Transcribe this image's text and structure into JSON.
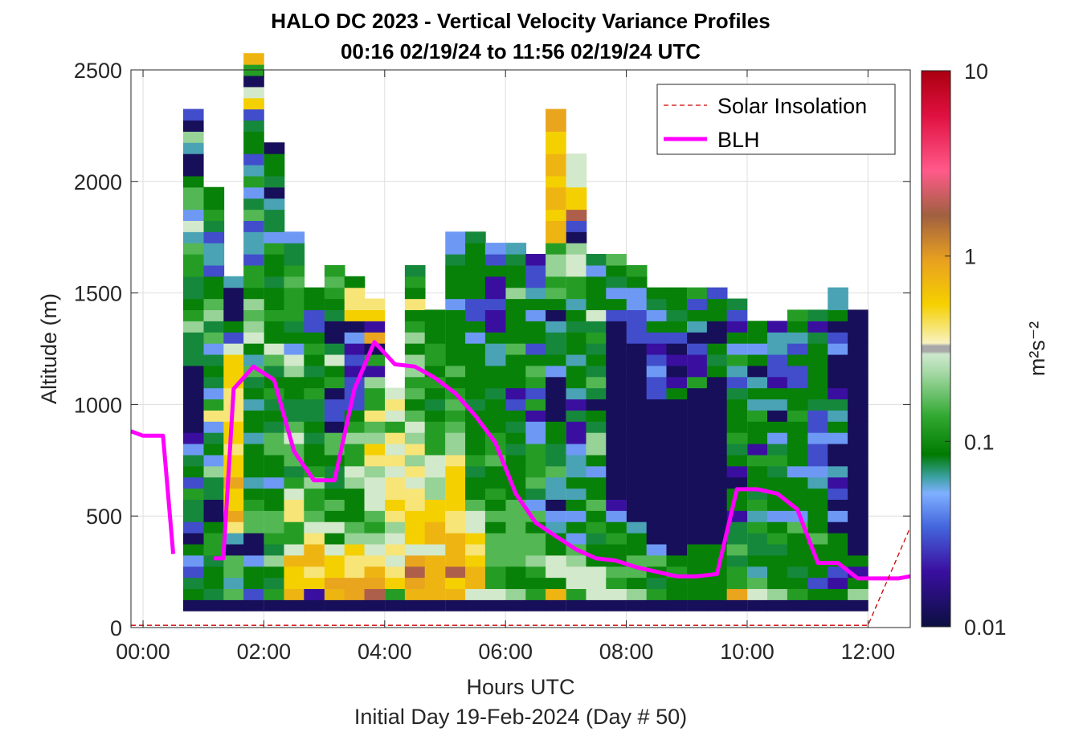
{
  "title_line1": "HALO DC 2023 - Vertical Velocity Variance Profiles",
  "title_line2": "00:16 02/19/24 to 11:56 02/19/24  UTC",
  "xlabel": "Hours UTC",
  "subtitle": "Initial Day 19-Feb-2024 (Day # 50)",
  "ylabel": "Altitude (m)",
  "colorbar_label": "m²s⁻²",
  "legend": [
    {
      "label": "Solar Insolation",
      "color": "#cc0000",
      "style": "dashed"
    },
    {
      "label": "BLH",
      "color": "#ff00ff",
      "style": "solid"
    }
  ],
  "chart_data": {
    "type": "heatmap",
    "x_unit": "hours UTC",
    "y_unit": "m",
    "xlim": [
      -0.2,
      12.7
    ],
    "ylim": [
      0,
      2500
    ],
    "xticks": [
      {
        "v": 0,
        "label": "00:00"
      },
      {
        "v": 2,
        "label": "02:00"
      },
      {
        "v": 4,
        "label": "04:00"
      },
      {
        "v": 6,
        "label": "06:00"
      },
      {
        "v": 8,
        "label": "08:00"
      },
      {
        "v": 10,
        "label": "10:00"
      },
      {
        "v": 12,
        "label": "12:00"
      }
    ],
    "yticks": [
      0,
      500,
      1000,
      1500,
      2000,
      2500
    ],
    "grid": true,
    "legend_position": "top-right",
    "colorbar": {
      "scale": "log",
      "min": 0.01,
      "max": 10,
      "ticks": [
        {
          "v": 0.01,
          "label": "0.01"
        },
        {
          "v": 0.1,
          "label": "0.1"
        },
        {
          "v": 1,
          "label": "1"
        },
        {
          "v": 10,
          "label": "10"
        }
      ]
    },
    "cell_width_h": 0.333,
    "cell_height_m": 50,
    "altitude_start_m": 100,
    "profile_times": [
      0.83,
      1.17,
      1.5,
      1.83,
      2.17,
      2.5,
      2.83,
      3.17,
      3.5,
      3.83,
      4.17,
      4.5,
      4.83,
      5.17,
      5.5,
      5.83,
      6.17,
      6.5,
      6.83,
      7.17,
      7.5,
      7.83,
      8.17,
      8.5,
      8.83,
      9.17,
      9.5,
      9.83,
      10.17,
      10.5,
      10.83,
      11.17,
      11.5,
      11.83
    ],
    "variance_code_key": "a=0.012 b=0.02 c=0.03 d=0.045 e=0.06 f=0.075 g=0.09 h=0.12 i=0.16 j=0.22 k=0.3 m=0.4 n=0.55 p=0.75 q=0.9 r=1.8",
    "variance_profiles_m2s2_coded": [
      "agfcdgacffhcgfdbaaaaaafffjhgffhhiekdiigaaejac",
      "afggfhhgaaffjdgfdmhdfgfdifjiggceecfhgg",
      "aieiiaemqnnqnnmnnmmmnnnkcgaaae",
      "acggdaaiihgegggeggegfiegkjijghhceecifdhecggfcnkahp",
      "ahfgjfhiiggdggiifgfhgfikgghggfgghdffeafgga",
      "apnnpkhhmmkhfiikiffggjkdgfhhhihffd",
      "abnmppmkihhjhggfgffhgfghgccgg",
      "apqnnkgkgigffgiiaccahgkfaafghih",
      "aqqmmnjigggjkhhjhgcccbcbdanmmg",
      "arqpmkjhikkkjmnjimhhjbhaqbnm",
      "ahnmkmkjmnmmkmkmhkmk",
      "apqrqknnnmmkmjmjkigihjjgjhgmghf",
      "appppkppnnjjkkhhhgfghghhggg",
      "apnrpppmmnnnnmjjihihgigggggdgggfdd",
      "akppnmnkkiggfhggggfgggggdgccgggggf",
      "akhhiiigighggihhgggfggeegbbcbbgcd",
      "ajggiiiiiiggggfgfgcbgggiggggjggfe",
      "ahghjiigidfihhhddbhchigcggdgeccb",
      "apgkkggedaeeiffggaaaadgffeagihjjhppnppnppnnqq",
      "ahkkjidgdgegeedbbfbeggeggfgehhkkjacrnnkkk",
      "akkkggfhgiggdgjjfgafifgfhfkgggdf",
      "akhigghgdbaaaaaaaaaaaaaaaacgdfgi",
      "ajgiiggeaaaaaaaaaaaaaaaacccddgh",
      "ahfgidaaaaaaaaaaaaaccdcbcgdfg",
      "agghgaaaaaaaaaaaaaagbabacgfgg",
      "agggggaaaaaaaaaaaaaahbbcaegch",
      "agggggaaaaaaaaaaaaaaagfgaaggc",
      "aqhhfiffbggabgfhgggfcehdgbcf",
      "akiegffhehfgghbgghegeagdgg",
      "ajgggfhgdgggfhfdgaegbcceeb",
      "ahgfgggidgggdgggghggccgcegh",
      "agcgggiggggedccdccfgggggfbf",
      "agbcgggadacbeaadgefbaaadcagee",
      "ajgbgaaaaaaaaaaaaaaaaaaaaaa"
    ],
    "series": [
      {
        "name": "BLH",
        "x": [
          -0.2,
          0.0,
          0.17,
          0.33,
          0.5,
          0.67,
          1.17,
          1.33,
          1.5,
          1.83,
          2.17,
          2.5,
          2.83,
          3.17,
          3.5,
          3.83,
          4.17,
          4.5,
          4.83,
          5.17,
          5.5,
          5.83,
          6.17,
          6.5,
          6.83,
          7.17,
          7.5,
          7.83,
          8.17,
          8.5,
          8.83,
          9.17,
          9.5,
          9.83,
          10.17,
          10.5,
          10.83,
          11.17,
          11.5,
          11.83,
          12.17,
          12.5,
          12.7
        ],
        "y": [
          880,
          860,
          860,
          860,
          330,
          null,
          310,
          310,
          1070,
          1170,
          1110,
          790,
          660,
          660,
          1070,
          1280,
          1180,
          1170,
          1120,
          1050,
          950,
          830,
          600,
          470,
          410,
          350,
          310,
          300,
          270,
          250,
          230,
          230,
          240,
          620,
          620,
          600,
          530,
          290,
          290,
          220,
          220,
          220,
          230
        ]
      },
      {
        "name": "Solar Insolation",
        "x": [
          -0.2,
          12.0,
          12.7
        ],
        "y": [
          10,
          10,
          450
        ]
      }
    ]
  }
}
